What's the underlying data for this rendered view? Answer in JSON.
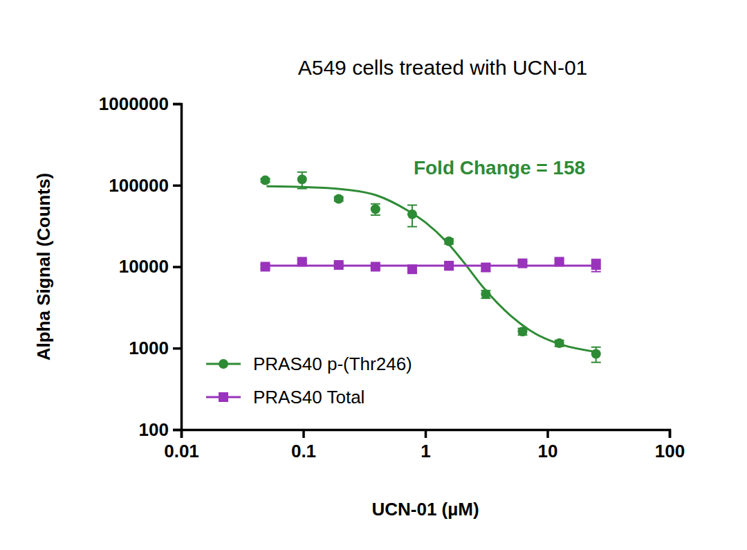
{
  "chart_data": {
    "type": "scatter",
    "title": "A549 cells treated with UCN-01",
    "x_label": "UCN-01 (µM)",
    "y_label": "Alpha Signal (Counts)",
    "log": true,
    "xlim": [
      0.01,
      100
    ],
    "xticks": [
      0.01,
      0.1,
      1,
      10,
      100
    ],
    "ylim": [
      100,
      1000000
    ],
    "yticks": [
      100,
      1000,
      10000,
      100000,
      1000000
    ],
    "legend": "lower left",
    "x": [
      0.0488,
      0.0977,
      0.195,
      0.39,
      0.78,
      1.56,
      3.125,
      6.25,
      12.5,
      25
    ],
    "series": [
      {
        "name": "PRAS40 p-(Thr246)",
        "color": "#2e8b35",
        "marker": "circle",
        "values": [
          115000,
          118000,
          68000,
          51000,
          44000,
          20500,
          4600,
          1600,
          1150,
          850
        ],
        "errors": [
          6000,
          27000,
          4000,
          8000,
          13000,
          1500,
          500,
          150,
          100,
          180
        ],
        "fit_x": [
          0.05,
          0.1,
          0.2,
          0.4,
          0.7,
          1,
          1.5,
          2,
          3,
          5,
          8,
          12,
          25
        ],
        "fit_values": [
          97000,
          95000,
          90000,
          75000,
          50000,
          35000,
          20000,
          12000,
          5500,
          2500,
          1500,
          1150,
          900
        ]
      },
      {
        "name": "PRAS40 Total",
        "color": "#9933bb",
        "marker": "square",
        "values": [
          10000,
          11500,
          10500,
          10000,
          9300,
          10300,
          9800,
          11000,
          11500,
          10500
        ],
        "errors": [
          500,
          600,
          500,
          400,
          900,
          1200,
          1000,
          600,
          700,
          1800
        ],
        "fit_x": [
          0.05,
          25
        ],
        "fit_values": [
          10300,
          10300
        ]
      }
    ],
    "annotations": [
      {
        "text": "Fold Change = 158",
        "color": "#2e8b35"
      }
    ]
  }
}
